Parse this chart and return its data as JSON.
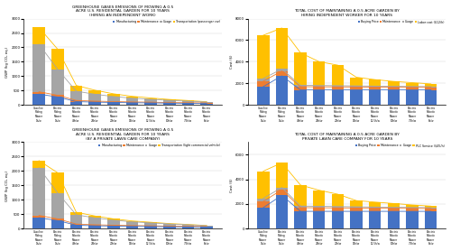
{
  "categories": [
    "Gasoline\nRiding\nMower\n1h/w",
    "Electric\nRiding\nMower\n1h/w",
    "Electric\nRobotic\nMower\n40h/w",
    "Electric\nRobotic\nMower\n28h/w",
    "Electric\nRobotic\nMower\n20h/w",
    "Electric\nRobotic\nMower\n15h/w",
    "Electric\nRobotic\nMower\n12.5h/w",
    "Electric\nRobotic\nMower\n10h/w",
    "Electric\nRobotic\nMower\n7.5h/w",
    "Electric\nRobotic\nMower\n5h/w"
  ],
  "lca_sit2": {
    "manufacturing": [
      380,
      280,
      120,
      100,
      90,
      80,
      75,
      65,
      60,
      55
    ],
    "maintenance": [
      80,
      60,
      40,
      35,
      30,
      28,
      25,
      22,
      20,
      18
    ],
    "usage": [
      1650,
      900,
      320,
      240,
      175,
      130,
      100,
      75,
      55,
      30
    ],
    "transport": [
      580,
      700,
      200,
      140,
      95,
      65,
      45,
      32,
      22,
      12
    ]
  },
  "lcc_sit2": {
    "buying": [
      1700,
      2700,
      1400,
      1400,
      1400,
      1400,
      1400,
      1400,
      1400,
      1400
    ],
    "maintenance": [
      500,
      450,
      300,
      290,
      280,
      270,
      260,
      250,
      240,
      230
    ],
    "usage": [
      250,
      180,
      130,
      120,
      110,
      100,
      90,
      85,
      80,
      75
    ],
    "labor": [
      4000,
      3800,
      3000,
      2200,
      1900,
      800,
      600,
      450,
      350,
      250
    ]
  },
  "lca_sit3": {
    "manufacturing": [
      380,
      280,
      120,
      100,
      90,
      80,
      75,
      65,
      60,
      55
    ],
    "maintenance": [
      80,
      60,
      40,
      35,
      30,
      28,
      25,
      22,
      20,
      18
    ],
    "usage": [
      1650,
      900,
      320,
      240,
      175,
      130,
      100,
      75,
      55,
      30
    ],
    "transport": [
      250,
      700,
      90,
      65,
      45,
      30,
      22,
      15,
      10,
      5
    ]
  },
  "lcc_sit3": {
    "buying": [
      1700,
      2700,
      1400,
      1400,
      1400,
      1400,
      1400,
      1400,
      1400,
      1400
    ],
    "maintenance": [
      500,
      450,
      300,
      290,
      280,
      270,
      260,
      250,
      240,
      230
    ],
    "usage": [
      250,
      180,
      130,
      120,
      110,
      100,
      90,
      85,
      80,
      75
    ],
    "plc": [
      2200,
      2000,
      1700,
      1300,
      1000,
      500,
      400,
      300,
      200,
      120
    ]
  },
  "colors_lca": {
    "manufacturing": "#4472c4",
    "maintenance": "#ed7d31",
    "usage": "#a5a5a5",
    "transport_car": "#ffc000",
    "transport_lcv": "#ffc000"
  },
  "colors_lcc": {
    "buying": "#4472c4",
    "maintenance": "#ed7d31",
    "usage": "#a5a5a5",
    "labor": "#ffc000",
    "plc": "#ffc000"
  },
  "title_a": "GREENHOUSE GASES EMISSIONS OF MOWING A 0.5\nACRE U.S. RESIDENTIAL GARDEN FOR 10 YEARS\n(HIRING AN INDEPENDENT WORK)",
  "title_b": "TOTAL COST OF MAINTAINING A 0.5 ACRE GARDEN BY\nHIRING INDEPENDENT WORKER FOR 10 YEARS",
  "title_c": "GREENHOUSE GASES EMISSIONS OF MOWING A 0.5\nACRE U.S. RESIDENTIAL GARDEN FOR 10 YEARS\n(BY A PRIVATE LAWN CARE COMPANY)",
  "title_d": "TOTAL COST OF MAINTAINING A 0.5 ACRE GARDEN BY\nPRIVATE LAWN CARE COMPANY FOR 10 YEARS",
  "ylabel_lca": "GWP (kg CO₂ eq.)",
  "ylabel_lcc": "Cost ($)",
  "ylim_lca": [
    0,
    3000
  ],
  "ylim_lcc_sit2": [
    0,
    8000
  ],
  "ylim_lcc_sit3": [
    0,
    7000
  ],
  "yticks_lca": [
    0,
    500,
    1000,
    1500,
    2000,
    2500,
    3000
  ],
  "yticks_lcc2": [
    0,
    2000,
    4000,
    6000,
    8000
  ],
  "yticks_lcc3": [
    0,
    2000,
    4000,
    6000
  ]
}
